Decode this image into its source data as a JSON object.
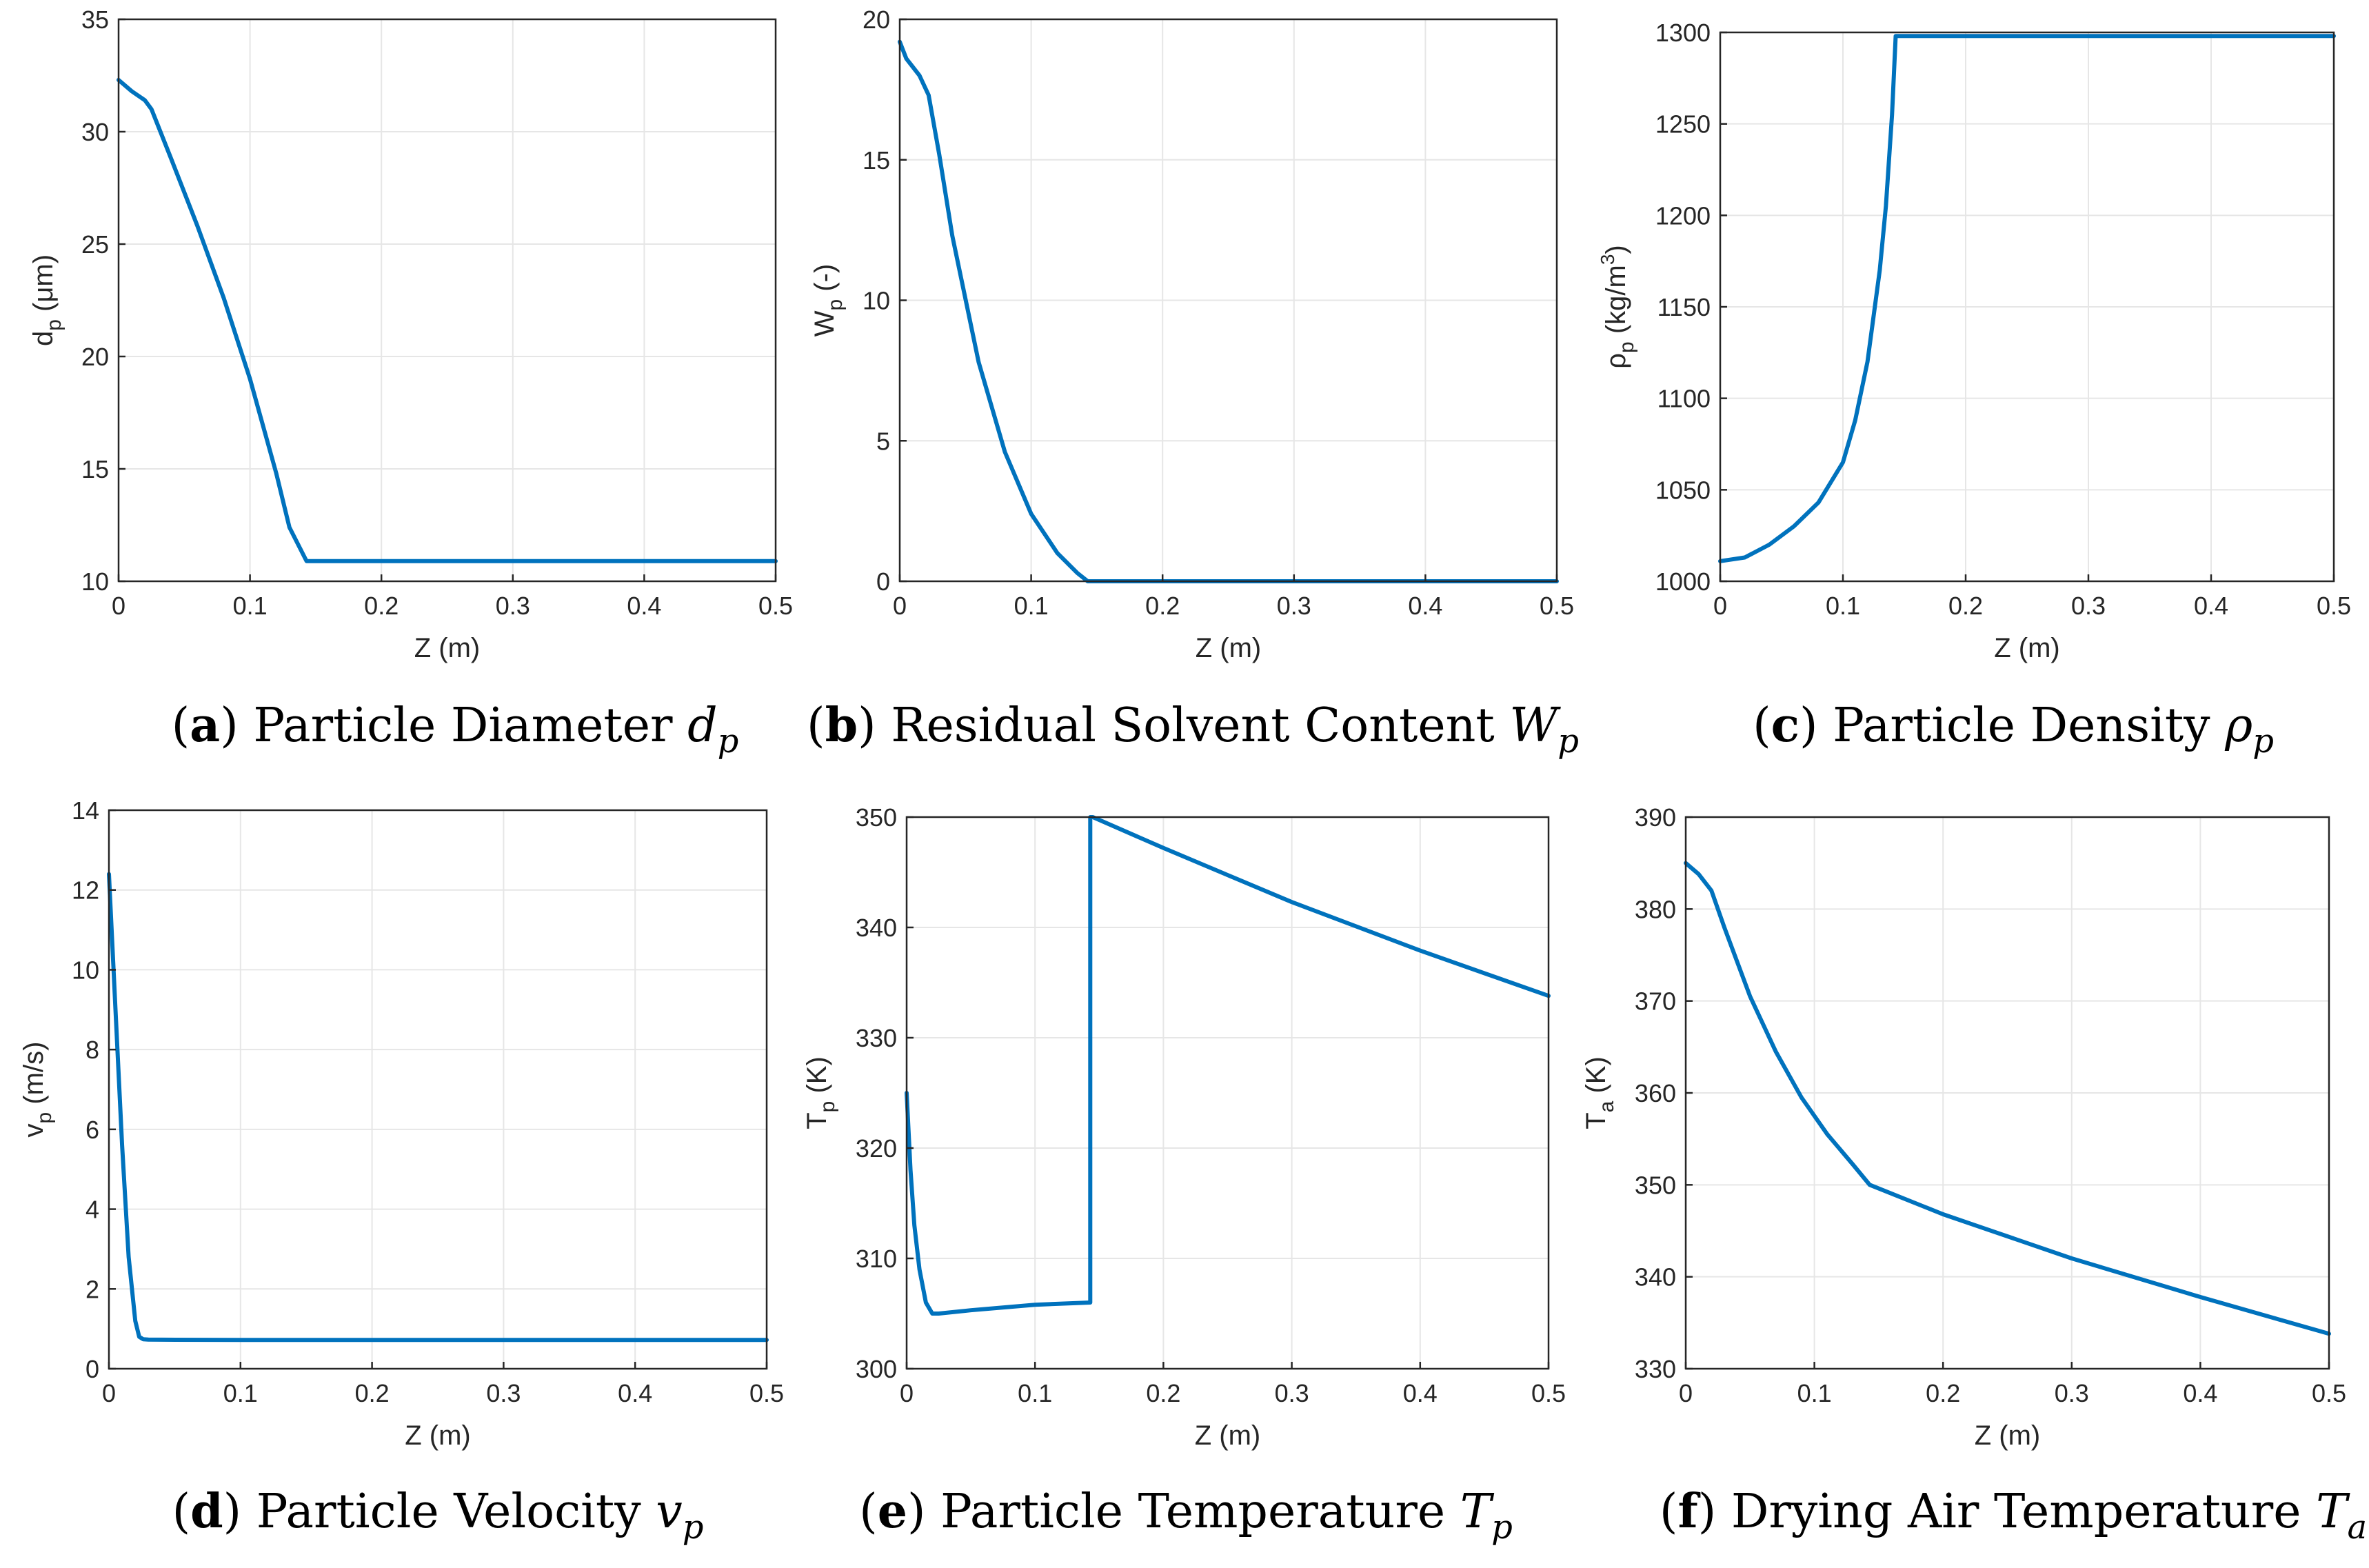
{
  "colors": {
    "line": "#0072BD",
    "grid": "#e6e6e6",
    "axis": "#262626"
  },
  "chart_data": [
    {
      "type": "line",
      "id": "a",
      "caption": {
        "letter": "a",
        "text": " Particle Diameter ",
        "symbol": "d",
        "sub": "p"
      },
      "xlabel": "Z (m)",
      "ylabel_main": "d",
      "ylabel_sub": "p",
      "ylabel_rest": " (μm)",
      "xlim": [
        0,
        0.5
      ],
      "ylim": [
        10,
        35
      ],
      "xticks": [
        "0",
        "0.1",
        "0.2",
        "0.3",
        "0.4",
        "0.5"
      ],
      "yticks": [
        "10",
        "15",
        "20",
        "25",
        "30",
        "35"
      ],
      "series": [
        {
          "name": "d_p",
          "x": [
            0,
            0.01,
            0.02,
            0.025,
            0.04,
            0.06,
            0.08,
            0.1,
            0.12,
            0.13,
            0.143,
            0.5
          ],
          "y": [
            32.3,
            31.8,
            31.4,
            31.0,
            28.8,
            25.8,
            22.6,
            19.0,
            14.8,
            12.4,
            10.9,
            10.9
          ]
        }
      ]
    },
    {
      "type": "line",
      "id": "b",
      "caption": {
        "letter": "b",
        "text": " Residual Solvent Content ",
        "symbol": "W",
        "sub": "p"
      },
      "xlabel": "Z (m)",
      "ylabel_main": "W",
      "ylabel_sub": "p",
      "ylabel_rest": " (-)",
      "xlim": [
        0,
        0.5
      ],
      "ylim": [
        0,
        20
      ],
      "xticks": [
        "0",
        "0.1",
        "0.2",
        "0.3",
        "0.4",
        "0.5"
      ],
      "yticks": [
        "0",
        "5",
        "10",
        "15",
        "20"
      ],
      "series": [
        {
          "name": "W_p",
          "x": [
            0,
            0.005,
            0.015,
            0.022,
            0.03,
            0.04,
            0.06,
            0.08,
            0.1,
            0.12,
            0.135,
            0.143,
            0.5
          ],
          "y": [
            19.2,
            18.6,
            18.0,
            17.3,
            15.2,
            12.3,
            7.8,
            4.6,
            2.4,
            1.0,
            0.3,
            0.0,
            0.0
          ]
        }
      ]
    },
    {
      "type": "line",
      "id": "c",
      "caption": {
        "letter": "c",
        "text": " Particle Density ",
        "symbol": "ρ",
        "sub": "p"
      },
      "xlabel": "Z (m)",
      "ylabel_main": "ρ",
      "ylabel_sub": "p",
      "ylabel_rest": " (kg/m",
      "ylabel_sup": "3",
      "ylabel_end": ")",
      "xlim": [
        0,
        0.5
      ],
      "ylim": [
        1000,
        1300
      ],
      "xticks": [
        "0",
        "0.1",
        "0.2",
        "0.3",
        "0.4",
        "0.5"
      ],
      "yticks": [
        "1000",
        "1050",
        "1100",
        "1150",
        "1200",
        "1250",
        "1300"
      ],
      "series": [
        {
          "name": "rho_p",
          "x": [
            0,
            0.02,
            0.04,
            0.06,
            0.08,
            0.1,
            0.11,
            0.12,
            0.13,
            0.135,
            0.14,
            0.143,
            0.5
          ],
          "y": [
            1011,
            1013,
            1020,
            1030,
            1043,
            1065,
            1088,
            1120,
            1170,
            1205,
            1255,
            1298,
            1298
          ]
        }
      ]
    },
    {
      "type": "line",
      "id": "d",
      "caption": {
        "letter": "d",
        "text": " Particle Velocity ",
        "symbol": "v",
        "sub": "p"
      },
      "xlabel": "Z (m)",
      "ylabel_main": "v",
      "ylabel_sub": "p",
      "ylabel_rest": " (m/s)",
      "xlim": [
        0,
        0.5
      ],
      "ylim": [
        0,
        14
      ],
      "xticks": [
        "0",
        "0.1",
        "0.2",
        "0.3",
        "0.4",
        "0.5"
      ],
      "yticks": [
        "0",
        "2",
        "4",
        "6",
        "8",
        "10",
        "12",
        "14"
      ],
      "series": [
        {
          "name": "v_p",
          "x": [
            0,
            0.005,
            0.01,
            0.015,
            0.02,
            0.023,
            0.026,
            0.03,
            0.1,
            0.5
          ],
          "y": [
            12.4,
            9.0,
            5.6,
            2.8,
            1.2,
            0.8,
            0.74,
            0.73,
            0.72,
            0.72
          ]
        }
      ]
    },
    {
      "type": "line",
      "id": "e",
      "caption": {
        "letter": "e",
        "text": " Particle Temperature ",
        "symbol": "T",
        "sub": "p"
      },
      "xlabel": "Z (m)",
      "ylabel_main": "T",
      "ylabel_sub": "p",
      "ylabel_rest": " (K)",
      "xlim": [
        0,
        0.5
      ],
      "ylim": [
        300,
        350
      ],
      "xticks": [
        "0",
        "0.1",
        "0.2",
        "0.3",
        "0.4",
        "0.5"
      ],
      "yticks": [
        "300",
        "310",
        "320",
        "330",
        "340",
        "350"
      ],
      "series": [
        {
          "name": "T_p",
          "x": [
            0,
            0.003,
            0.006,
            0.01,
            0.015,
            0.02,
            0.025,
            0.05,
            0.1,
            0.143,
            0.143,
            0.145,
            0.2,
            0.3,
            0.4,
            0.5
          ],
          "y": [
            325,
            318,
            313,
            309,
            306,
            305,
            305,
            305.3,
            305.8,
            306,
            350,
            350,
            347.2,
            342.3,
            337.9,
            333.8
          ]
        }
      ]
    },
    {
      "type": "line",
      "id": "f",
      "caption": {
        "letter": "f",
        "text": " Drying Air Temperature ",
        "symbol": "T",
        "sub": "a"
      },
      "xlabel": "Z (m)",
      "ylabel_main": "T",
      "ylabel_sub": "a",
      "ylabel_rest": " (K)",
      "xlim": [
        0,
        0.5
      ],
      "ylim": [
        330,
        390
      ],
      "xticks": [
        "0",
        "0.1",
        "0.2",
        "0.3",
        "0.4",
        "0.5"
      ],
      "yticks": [
        "330",
        "340",
        "350",
        "360",
        "370",
        "380",
        "390"
      ],
      "series": [
        {
          "name": "T_a",
          "x": [
            0,
            0.01,
            0.02,
            0.03,
            0.05,
            0.07,
            0.09,
            0.11,
            0.13,
            0.143,
            0.2,
            0.3,
            0.4,
            0.5
          ],
          "y": [
            385,
            383.8,
            382,
            378,
            370.5,
            364.5,
            359.5,
            355.5,
            352.2,
            350,
            346.8,
            342,
            337.8,
            333.8
          ]
        }
      ]
    }
  ]
}
